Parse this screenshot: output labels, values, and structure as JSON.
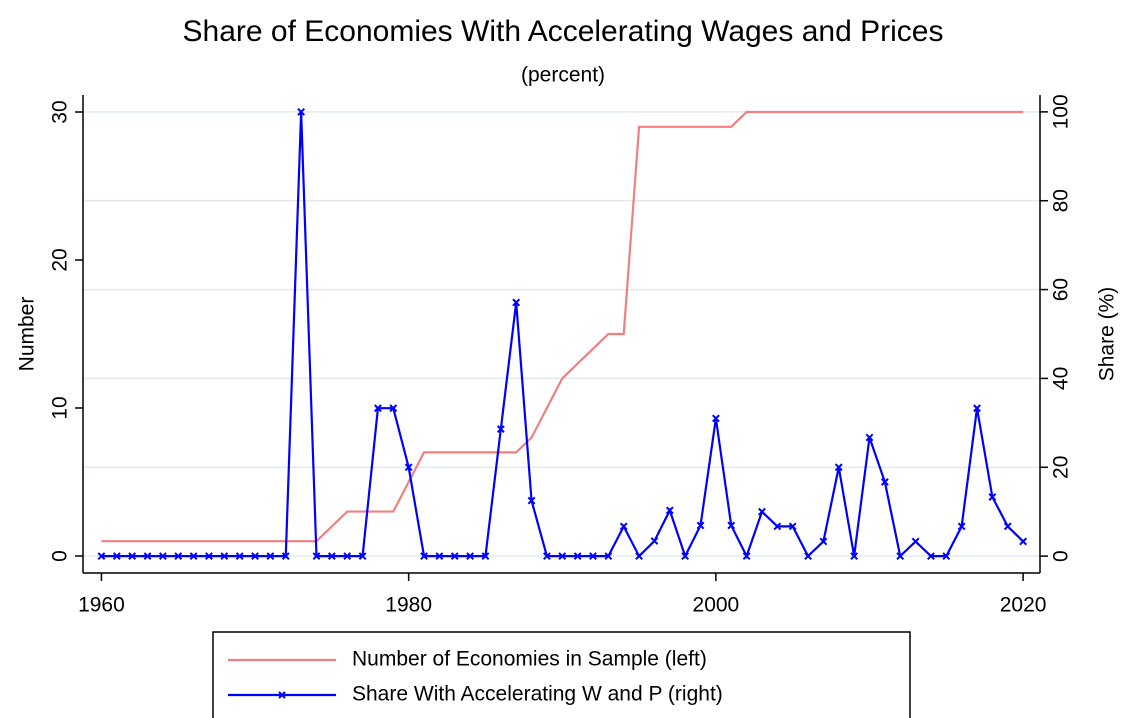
{
  "chart_data": {
    "type": "line",
    "title": "Share of Economies With Accelerating Wages and Prices",
    "subtitle": "(percent)",
    "y_label": "Number",
    "y2_label": "Share (%)",
    "x": [
      1960,
      1961,
      1962,
      1963,
      1964,
      1965,
      1966,
      1967,
      1968,
      1969,
      1970,
      1971,
      1972,
      1973,
      1974,
      1975,
      1976,
      1977,
      1978,
      1979,
      1980,
      1981,
      1982,
      1983,
      1984,
      1985,
      1986,
      1987,
      1988,
      1989,
      1990,
      1991,
      1992,
      1993,
      1994,
      1995,
      1996,
      1997,
      1998,
      1999,
      2000,
      2001,
      2002,
      2003,
      2004,
      2005,
      2006,
      2007,
      2008,
      2009,
      2010,
      2011,
      2012,
      2013,
      2014,
      2015,
      2016,
      2017,
      2018,
      2019,
      2020
    ],
    "series": [
      {
        "name": "Number of Economies in Sample (left)",
        "color": "#f08080",
        "marker": false,
        "values": [
          1,
          1,
          1,
          1,
          1,
          1,
          1,
          1,
          1,
          1,
          1,
          1,
          1,
          1,
          1,
          2,
          3,
          3,
          3,
          3,
          5,
          7,
          7,
          7,
          7,
          7,
          7,
          7,
          8,
          10,
          12,
          13,
          14,
          15,
          15,
          29,
          29,
          29,
          29,
          29,
          29,
          29,
          30,
          30,
          30,
          30,
          30,
          30,
          30,
          30,
          30,
          30,
          30,
          30,
          30,
          30,
          30,
          30,
          30,
          30,
          30
        ]
      },
      {
        "name": "Share With Accelerating W and P (right)",
        "color": "#0000ff",
        "axis": "y2",
        "marker": true,
        "values": [
          0,
          0,
          0,
          0,
          0,
          0,
          0,
          0,
          0,
          0,
          0,
          0,
          0,
          100,
          0,
          0,
          0,
          0,
          33.3,
          33.3,
          20,
          0,
          0,
          0,
          0,
          0,
          28.6,
          57.1,
          12.5,
          0,
          0,
          0,
          0,
          0,
          6.7,
          0,
          3.4,
          10.3,
          0,
          6.9,
          31,
          6.9,
          0,
          10,
          6.7,
          6.7,
          0,
          3.3,
          20,
          0,
          26.7,
          16.7,
          0,
          3.3,
          0,
          0,
          6.7,
          33.3,
          13.3,
          6.7,
          3.3
        ]
      }
    ],
    "xlim": [
      1958.8,
      2021.1
    ],
    "xticks": [
      1960,
      1980,
      2000,
      2020
    ],
    "ylim": [
      -1.15,
      31.15
    ],
    "yticks": [
      0,
      10,
      20,
      30
    ],
    "y2lim": [
      -3.8,
      103.8
    ],
    "y2ticks": [
      0,
      20,
      40,
      60,
      80,
      100
    ],
    "grid": true,
    "legend": "bottom"
  }
}
